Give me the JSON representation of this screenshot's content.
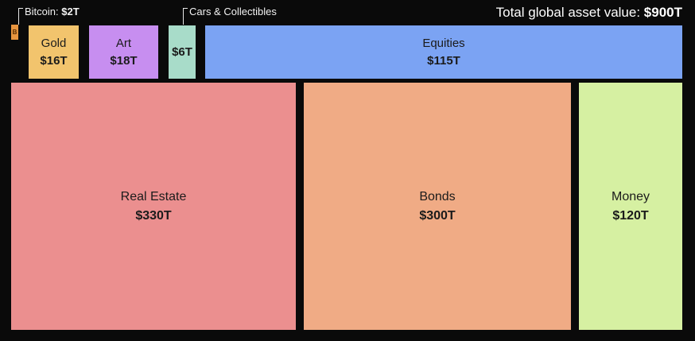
{
  "chart_data": {
    "type": "treemap",
    "title": "Total global asset value: $900T",
    "total_label": "Total global asset value:",
    "total_value": "$900T",
    "total_trillions": 900,
    "background": "#0a0a0a",
    "legend": "none",
    "items": [
      {
        "name": "Bitcoin",
        "callout_text": "Bitcoin:",
        "value_label": "$2T",
        "value_trillions": 2,
        "color": "#e8953f",
        "box_glyph": "B",
        "label_placement": "callout"
      },
      {
        "name": "Gold",
        "value_label": "$16T",
        "value_trillions": 16,
        "color": "#f2c46d",
        "label_placement": "inside"
      },
      {
        "name": "Art",
        "value_label": "$18T",
        "value_trillions": 18,
        "color": "#c78ef0",
        "label_placement": "inside"
      },
      {
        "name": "Cars & Collectibles",
        "value_label": "$6T",
        "value_trillions": 6,
        "color": "#a8dcc9",
        "label_placement": "callout"
      },
      {
        "name": "Equities",
        "value_label": "$115T",
        "value_trillions": 115,
        "color": "#7ba3f3",
        "label_placement": "inside"
      },
      {
        "name": "Real Estate",
        "value_label": "$330T",
        "value_trillions": 330,
        "color": "#eb8f8f",
        "label_placement": "inside"
      },
      {
        "name": "Bonds",
        "value_label": "$300T",
        "value_trillions": 300,
        "color": "#f0ab85",
        "label_placement": "inside"
      },
      {
        "name": "Money",
        "value_label": "$120T",
        "value_trillions": 120,
        "color": "#d6f0a2",
        "label_placement": "inside"
      }
    ]
  }
}
